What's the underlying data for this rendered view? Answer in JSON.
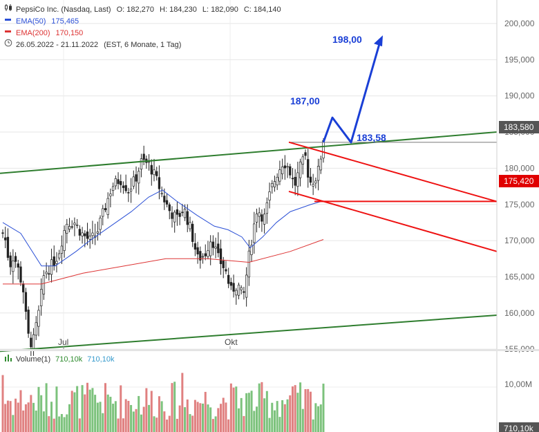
{
  "header": {
    "instrument": "PepsiCo Inc. (Nasdaq, Last)",
    "open": "O: 182,270",
    "high": "H: 184,230",
    "low": "L: 182,090",
    "close": "C: 184,140",
    "ema50_label": "EMA(50)",
    "ema50_value": "175,465",
    "ema200_label": "EMA(200)",
    "ema200_value": "170,150",
    "range": "26.05.2022 - 21.11.2022",
    "range_info": "(EST, 6 Monate, 1 Tag)"
  },
  "colors": {
    "up": "#2e8b2e",
    "down": "#cc2222",
    "ema50": "#2a4fd6",
    "ema200": "#dd3333",
    "channel": "#2e7d2e",
    "target": "#1a3fd6",
    "trend": "#ee1111"
  },
  "volume_legend": {
    "label": "Volume(1)",
    "value1": "710,10k",
    "value2": "710,10k"
  },
  "chart_data": {
    "type": "candlestick",
    "y_axis": {
      "ticks": [
        155,
        160,
        165,
        170,
        175,
        180,
        185,
        190,
        195,
        200
      ],
      "tick_labels": [
        "155,000",
        "160,000",
        "165,000",
        "170,000",
        "175,000",
        "180,000",
        "185,000",
        "190,000",
        "195,000",
        "200,000"
      ],
      "range": [
        150.5,
        203.5
      ]
    },
    "x_axis": {
      "tick_labels": [
        "Jul",
        "Okt"
      ]
    },
    "current_price_label": "183,580",
    "level_label": "175,420",
    "annotations": [
      {
        "text": "198,00",
        "value": 198.0
      },
      {
        "text": "187,00",
        "value": 187.0
      },
      {
        "text": "183,58",
        "value": 183.58
      }
    ],
    "volume_axis": {
      "tick_labels": [
        "10,00M"
      ],
      "current_label": "710,10k"
    }
  }
}
